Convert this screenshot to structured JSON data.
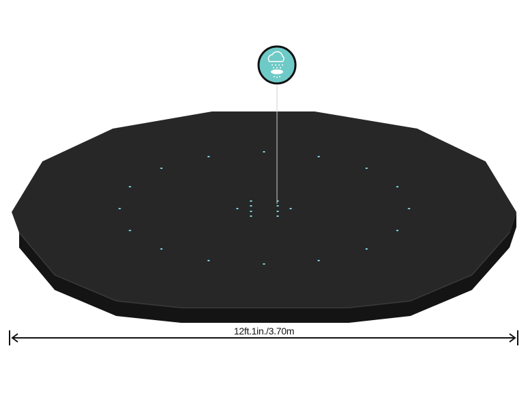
{
  "product": {
    "dimension_label": "12ft.1in./3.70m",
    "feature_icon": "rain-drain-icon",
    "colors": {
      "cover": "#262626",
      "cover_side": "#1a1a1a",
      "drain_holes": "#7fd6e0",
      "icon_badge": "#6ecac6"
    }
  }
}
